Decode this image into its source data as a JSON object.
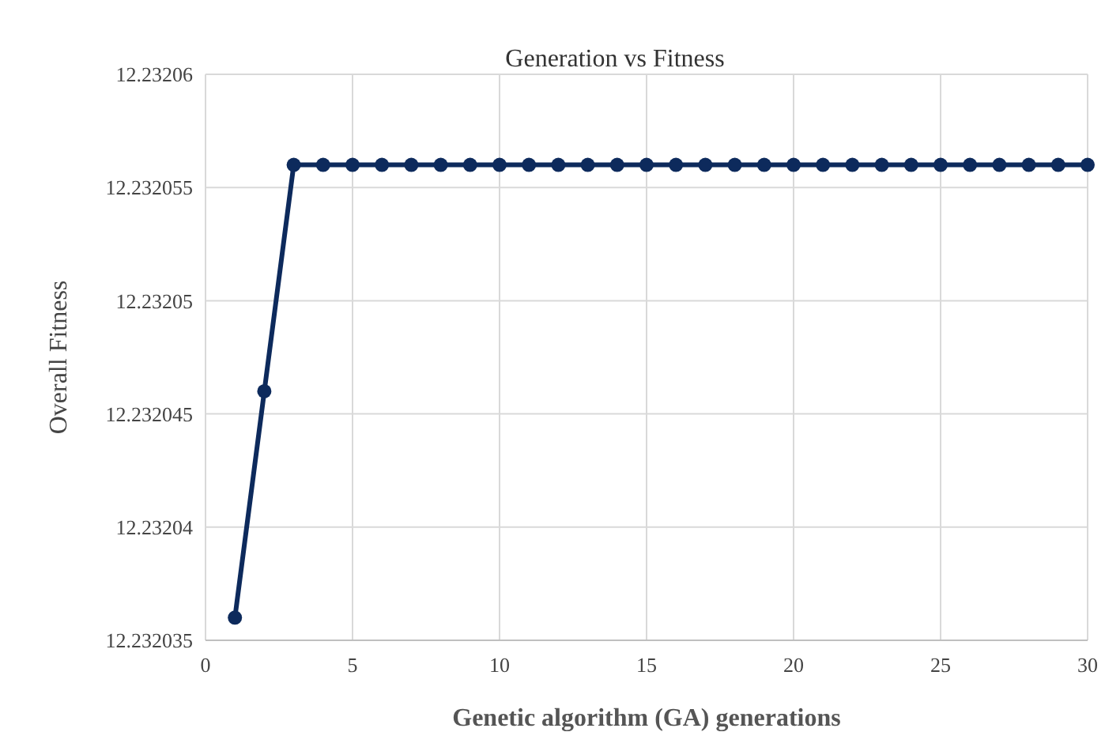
{
  "chart_data": {
    "type": "line",
    "title": "Generation vs Fitness",
    "xlabel": "Genetic algorithm (GA) generations",
    "ylabel": "Overall Fitness",
    "x": [
      1,
      2,
      3,
      4,
      5,
      6,
      7,
      8,
      9,
      10,
      11,
      12,
      13,
      14,
      15,
      16,
      17,
      18,
      19,
      20,
      21,
      22,
      23,
      24,
      25,
      26,
      27,
      28,
      29,
      30
    ],
    "series": [
      {
        "color": "#0d2a5c",
        "values": [
          12.232036,
          12.232046,
          12.232056,
          12.232056,
          12.232056,
          12.232056,
          12.232056,
          12.232056,
          12.232056,
          12.232056,
          12.232056,
          12.232056,
          12.232056,
          12.232056,
          12.232056,
          12.232056,
          12.232056,
          12.232056,
          12.232056,
          12.232056,
          12.232056,
          12.232056,
          12.232056,
          12.232056,
          12.232056,
          12.232056,
          12.232056,
          12.232056,
          12.232056,
          12.232056
        ]
      }
    ],
    "xlim": [
      0,
      30
    ],
    "xticks": [
      0,
      5,
      10,
      15,
      20,
      25,
      30
    ],
    "ylim": [
      12.232035,
      12.23206
    ],
    "yticks": [
      12.232035,
      12.23204,
      12.232045,
      12.23205,
      12.232055,
      12.23206
    ],
    "grid": true,
    "marker": "circle",
    "line_style": "solid"
  }
}
